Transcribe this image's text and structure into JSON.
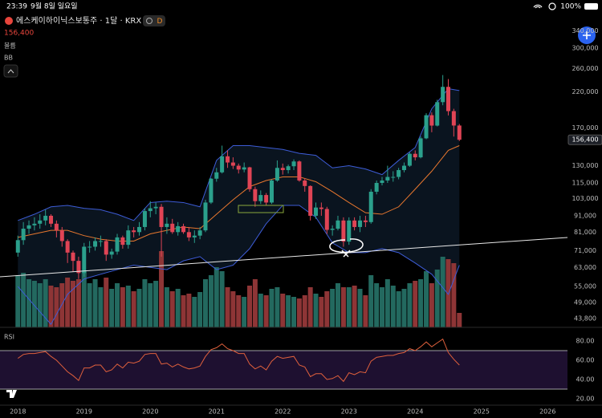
{
  "status": {
    "time": "23:39",
    "date": "9월 8일 일요일",
    "battery": "100%"
  },
  "header": {
    "title": "에스케이하이닉스보통주 · 1달 · KRX",
    "badge": "D",
    "price": "156,400",
    "volume_label": "볼륨",
    "bb_label": "BB"
  },
  "chart_data": [
    {
      "type": "candlestick",
      "log_scale": true,
      "grid": false,
      "up_color": "#2ba08c",
      "down_color": "#e04455",
      "volume_up_color": "#23695f",
      "volume_down_color": "#8e3536",
      "xlim": [
        2017.73,
        2026.3
      ],
      "xticks": [
        2018,
        2019,
        2020,
        2021,
        2022,
        2023,
        2024,
        2025,
        2026
      ],
      "ylim": [
        41100,
        356600
      ],
      "yticks": [
        {
          "value": 340000,
          "label": "340,000"
        },
        {
          "value": 300000,
          "label": "300,000"
        },
        {
          "value": 260000,
          "label": "260,000"
        },
        {
          "value": 220000,
          "label": "220,000"
        },
        {
          "value": 170000,
          "label": "170,000"
        },
        {
          "value": 130000,
          "label": "130,000"
        },
        {
          "value": 115000,
          "label": "115,000"
        },
        {
          "value": 103000,
          "label": "103,000"
        },
        {
          "value": 91000,
          "label": "91,000"
        },
        {
          "value": 81000,
          "label": "81,000"
        },
        {
          "value": 71000,
          "label": "71,000"
        },
        {
          "value": 63000,
          "label": "63,000"
        },
        {
          "value": 55000,
          "label": "55,000"
        },
        {
          "value": 49000,
          "label": "49,000"
        },
        {
          "value": 43800,
          "label": "43,800"
        }
      ],
      "x": [
        2018,
        2018.083,
        2018.167,
        2018.25,
        2018.333,
        2018.417,
        2018.5,
        2018.583,
        2018.667,
        2018.75,
        2018.833,
        2018.917,
        2019,
        2019.083,
        2019.167,
        2019.25,
        2019.333,
        2019.417,
        2019.5,
        2019.583,
        2019.667,
        2019.75,
        2019.833,
        2019.917,
        2020,
        2020.083,
        2020.167,
        2020.25,
        2020.333,
        2020.417,
        2020.5,
        2020.583,
        2020.667,
        2020.75,
        2020.833,
        2020.917,
        2021,
        2021.083,
        2021.167,
        2021.25,
        2021.333,
        2021.417,
        2021.5,
        2021.583,
        2021.667,
        2021.75,
        2021.833,
        2021.917,
        2022,
        2022.083,
        2022.167,
        2022.25,
        2022.333,
        2022.417,
        2022.5,
        2022.583,
        2022.667,
        2022.75,
        2022.833,
        2022.917,
        2023,
        2023.083,
        2023.167,
        2023.25,
        2023.333,
        2023.417,
        2023.5,
        2023.583,
        2023.667,
        2023.75,
        2023.833,
        2023.917,
        2024,
        2024.083,
        2024.167,
        2024.25,
        2024.333,
        2024.417,
        2024.5,
        2024.583,
        2024.667
      ],
      "open": [
        70000,
        76500,
        83000,
        85000,
        86000,
        88000,
        91000,
        86000,
        82000,
        76000,
        70000,
        66000,
        60500,
        73000,
        73000,
        76000,
        76000,
        69000,
        70500,
        78000,
        74000,
        82000,
        81000,
        84000,
        94100,
        96000,
        97000,
        84000,
        86000,
        81000,
        84500,
        81000,
        78000,
        79000,
        82000,
        100000,
        118500,
        124000,
        139000,
        133000,
        130000,
        126500,
        128500,
        110000,
        101000,
        105500,
        100000,
        117000,
        128000,
        126000,
        129500,
        134000,
        117000,
        112500,
        91000,
        96500,
        95500,
        82300,
        83000,
        88000,
        75700,
        88000,
        84000,
        88000,
        87000,
        108000,
        115000,
        117000,
        120000,
        120000,
        126000,
        130000,
        141500,
        138000,
        158000,
        186300,
        173000,
        204500,
        228000,
        191800,
        173100
      ],
      "high": [
        79000,
        87000,
        88000,
        90000,
        92000,
        95000,
        92000,
        88000,
        84000,
        77000,
        71000,
        68000,
        75000,
        76000,
        78000,
        79000,
        77000,
        72000,
        80000,
        79000,
        85000,
        84000,
        87000,
        96000,
        101000,
        100000,
        99000,
        90000,
        89000,
        87000,
        86000,
        84000,
        82000,
        84000,
        102000,
        119000,
        128000,
        150000,
        145000,
        138000,
        132000,
        133000,
        129000,
        112000,
        109000,
        107000,
        118000,
        135000,
        132000,
        131000,
        136000,
        135000,
        119000,
        113000,
        100000,
        100000,
        97000,
        85000,
        91000,
        90000,
        90000,
        90000,
        91000,
        91000,
        110000,
        117000,
        120000,
        130000,
        125000,
        128000,
        133000,
        143000,
        145000,
        160000,
        189000,
        190000,
        208000,
        248000,
        241000,
        195000,
        175000
      ],
      "low": [
        68000,
        74000,
        80000,
        82000,
        83000,
        85000,
        84000,
        78000,
        73000,
        65000,
        61000,
        58000,
        59000,
        70000,
        71000,
        73000,
        66000,
        67000,
        69000,
        72000,
        72000,
        78000,
        79000,
        82000,
        90000,
        92000,
        68000,
        80000,
        80000,
        79000,
        80000,
        76000,
        75000,
        77000,
        81000,
        99000,
        116000,
        123000,
        128000,
        127000,
        123000,
        124000,
        108000,
        97000,
        99000,
        98000,
        99000,
        116000,
        122000,
        123000,
        126000,
        116000,
        108000,
        88000,
        89000,
        91000,
        80000,
        79000,
        82000,
        73000,
        74000,
        82000,
        81000,
        84000,
        86000,
        106000,
        113000,
        115000,
        116000,
        118000,
        124000,
        129000,
        135000,
        137000,
        157000,
        165000,
        172000,
        200000,
        186000,
        160000,
        155000
      ],
      "close": [
        76500,
        83000,
        85000,
        86000,
        88000,
        91000,
        86000,
        82000,
        76000,
        70000,
        66000,
        60500,
        73000,
        73000,
        76000,
        76000,
        69000,
        70500,
        78000,
        74000,
        82000,
        81000,
        84000,
        94100,
        96000,
        97000,
        84000,
        86000,
        81000,
        84500,
        81000,
        78000,
        79000,
        82000,
        100000,
        118500,
        124000,
        139000,
        133000,
        130000,
        126500,
        128500,
        110000,
        101000,
        105500,
        100000,
        117000,
        128000,
        126000,
        129500,
        134000,
        117000,
        112500,
        91000,
        96500,
        95500,
        82300,
        83000,
        88000,
        75700,
        88000,
        84000,
        88000,
        87000,
        108000,
        115000,
        117000,
        120000,
        120000,
        126000,
        130000,
        141500,
        138000,
        158000,
        186300,
        173000,
        204500,
        228000,
        191800,
        173100,
        156400
      ],
      "volume": [
        65,
        68,
        60,
        58,
        55,
        60,
        52,
        50,
        55,
        62,
        58,
        60,
        70,
        55,
        60,
        50,
        62,
        48,
        55,
        50,
        52,
        45,
        48,
        60,
        55,
        58,
        95,
        50,
        45,
        48,
        40,
        42,
        38,
        44,
        60,
        65,
        75,
        70,
        50,
        45,
        40,
        38,
        52,
        60,
        42,
        40,
        48,
        50,
        42,
        40,
        38,
        36,
        40,
        50,
        42,
        38,
        45,
        48,
        55,
        50,
        50,
        52,
        48,
        40,
        65,
        55,
        50,
        60,
        52,
        45,
        48,
        55,
        58,
        60,
        70,
        55,
        72,
        88,
        85,
        80,
        18
      ],
      "bb": {
        "upper_color": "#3d5cd6",
        "basis_color": "#e8772e",
        "lower_color": "#3d5cd6",
        "x": [
          2018,
          2018.25,
          2018.5,
          2018.75,
          2019,
          2019.25,
          2019.5,
          2019.75,
          2020,
          2020.25,
          2020.5,
          2020.75,
          2021,
          2021.25,
          2021.5,
          2021.75,
          2022,
          2022.25,
          2022.5,
          2022.75,
          2023,
          2023.25,
          2023.5,
          2023.75,
          2024,
          2024.25,
          2024.5,
          2024.667
        ],
        "upper": [
          88000,
          92000,
          97000,
          98000,
          96000,
          95000,
          92000,
          88000,
          100000,
          101000,
          100000,
          97000,
          135000,
          150000,
          150000,
          148000,
          146000,
          142000,
          140000,
          128000,
          130000,
          127000,
          122000,
          135000,
          148000,
          195000,
          225000,
          222000
        ],
        "basis": [
          78000,
          80000,
          82000,
          82000,
          79000,
          77000,
          76000,
          76000,
          80000,
          82000,
          84000,
          83000,
          92000,
          102000,
          112000,
          117000,
          120000,
          120000,
          116000,
          108000,
          100000,
          93000,
          92000,
          97000,
          110000,
          125000,
          145000,
          150000
        ],
        "lower": [
          55000,
          48000,
          42000,
          52000,
          58000,
          60000,
          62000,
          64000,
          63000,
          62000,
          66000,
          68000,
          62000,
          64000,
          72000,
          86000,
          98000,
          98000,
          90000,
          75000,
          70000,
          70000,
          72000,
          70000,
          65000,
          60000,
          52000,
          64000
        ]
      }
    },
    {
      "type": "line",
      "title": "RSI",
      "color": "#e0603c",
      "band_color": "#1e1030",
      "ylim": [
        15,
        95
      ],
      "levels": [
        30,
        70
      ],
      "yticks": [
        {
          "value": 80,
          "label": "80.00"
        },
        {
          "value": 60,
          "label": "60.00"
        },
        {
          "value": 40,
          "label": "40.00"
        },
        {
          "value": 20,
          "label": "20.00"
        }
      ],
      "values": [
        62,
        66,
        67,
        67,
        68,
        69,
        64,
        60,
        54,
        48,
        44,
        39,
        52,
        52,
        55,
        55,
        48,
        50,
        56,
        52,
        58,
        57,
        59,
        66,
        67,
        67,
        56,
        57,
        53,
        56,
        53,
        51,
        52,
        54,
        64,
        71,
        73,
        77,
        72,
        70,
        67,
        67,
        56,
        51,
        54,
        50,
        59,
        64,
        62,
        63,
        64,
        55,
        53,
        43,
        46,
        46,
        40,
        41,
        44,
        38,
        47,
        45,
        48,
        47,
        59,
        63,
        64,
        65,
        65,
        67,
        68,
        72,
        70,
        74,
        79,
        74,
        78,
        82,
        68,
        61,
        55
      ]
    }
  ]
}
